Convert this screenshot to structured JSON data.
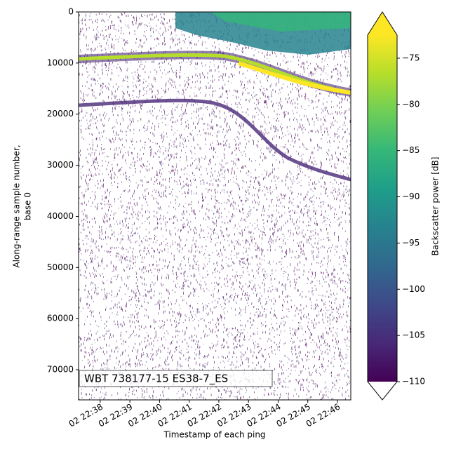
{
  "chart_data": {
    "type": "heatmap",
    "y_label": [
      "Along-range sample number,",
      "base 0"
    ],
    "x_label": "Timestamp of each ping",
    "annotation": "WBT 738177-15 ES38-7_ES",
    "xlim": [
      37.27,
      46.45
    ],
    "xticks": [
      {
        "value": 38,
        "label": "02 22:38"
      },
      {
        "value": 39,
        "label": "02 22:39"
      },
      {
        "value": 40,
        "label": "02 22:40"
      },
      {
        "value": 41,
        "label": "02 22:41"
      },
      {
        "value": 42,
        "label": "02 22:42"
      },
      {
        "value": 43,
        "label": "02 22:43"
      },
      {
        "value": 44,
        "label": "02 22:44"
      },
      {
        "value": 45,
        "label": "02 22:45"
      },
      {
        "value": 46,
        "label": "02 22:46"
      }
    ],
    "ylim": [
      0,
      75900
    ],
    "y_inverted": true,
    "yticks": [
      0,
      10000,
      20000,
      30000,
      40000,
      50000,
      60000,
      70000
    ],
    "colorbar": {
      "label": "Backscatter power [dB]",
      "colormap": [
        "#440154",
        "#482878",
        "#3e4989",
        "#31688e",
        "#26828e",
        "#1f9e89",
        "#35b779",
        "#6ece58",
        "#b5de2b",
        "#fde725"
      ],
      "clim": [
        -110,
        -72.5
      ],
      "extend": "both",
      "ticks": [
        {
          "value": -75,
          "label": "−75"
        },
        {
          "value": -80,
          "label": "−80"
        },
        {
          "value": -85,
          "label": "−85"
        },
        {
          "value": -90,
          "label": "−90"
        },
        {
          "value": -95,
          "label": "−95"
        },
        {
          "value": -100,
          "label": "−100"
        },
        {
          "value": -105,
          "label": "−105"
        },
        {
          "value": -110,
          "label": "−110"
        }
      ]
    }
  }
}
